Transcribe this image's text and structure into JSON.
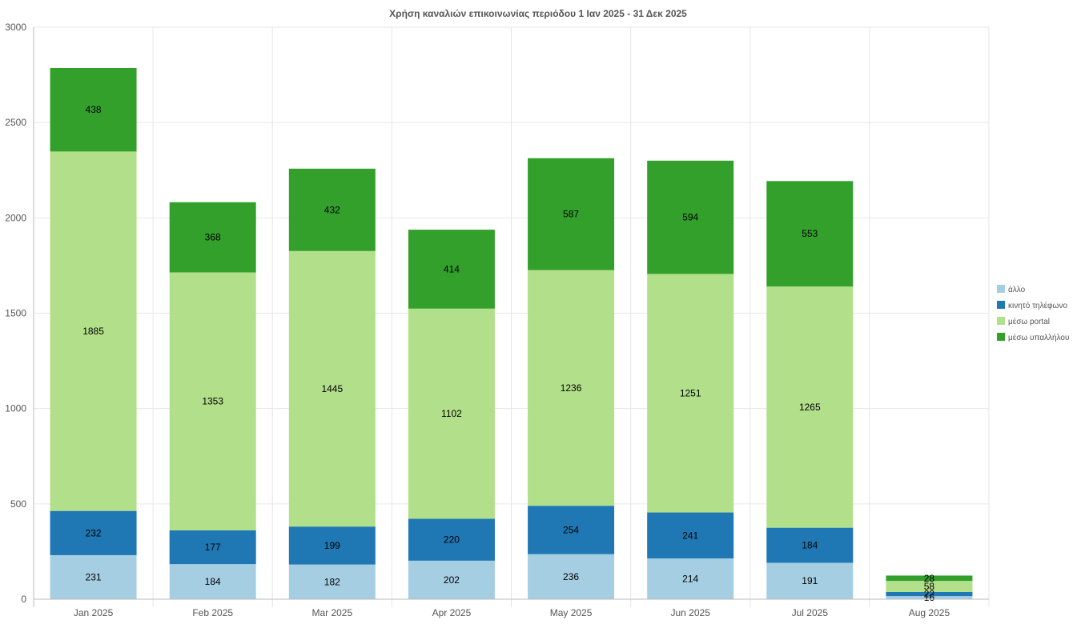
{
  "chart_data": {
    "type": "bar",
    "stacked": true,
    "title": "Χρήση καναλιών επικοινωνίας περιόδου 1 Ιαν 2025 - 31 Δεκ 2025",
    "xlabel": "",
    "ylabel": "",
    "categories": [
      "Jan 2025",
      "Feb 2025",
      "Mar 2025",
      "Apr 2025",
      "May 2025",
      "Jun 2025",
      "Jul 2025",
      "Aug 2025"
    ],
    "ylim": [
      0,
      3000
    ],
    "yticks": [
      0,
      500,
      1000,
      1500,
      2000,
      2500,
      3000
    ],
    "grid": true,
    "legend_position": "right",
    "series": [
      {
        "name": "άλλο",
        "color": "#a6cee3",
        "values": [
          231,
          184,
          182,
          202,
          236,
          214,
          191,
          16
        ]
      },
      {
        "name": "κινητό τηλέφωνο",
        "color": "#1f78b4",
        "values": [
          232,
          177,
          199,
          220,
          254,
          241,
          184,
          22
        ]
      },
      {
        "name": "μέσω portal",
        "color": "#b2df8a",
        "values": [
          1885,
          1353,
          1445,
          1102,
          1236,
          1251,
          1265,
          58
        ]
      },
      {
        "name": "μέσω υπαλλήλου",
        "color": "#33a02c",
        "values": [
          438,
          368,
          432,
          414,
          587,
          594,
          553,
          28
        ]
      }
    ]
  }
}
